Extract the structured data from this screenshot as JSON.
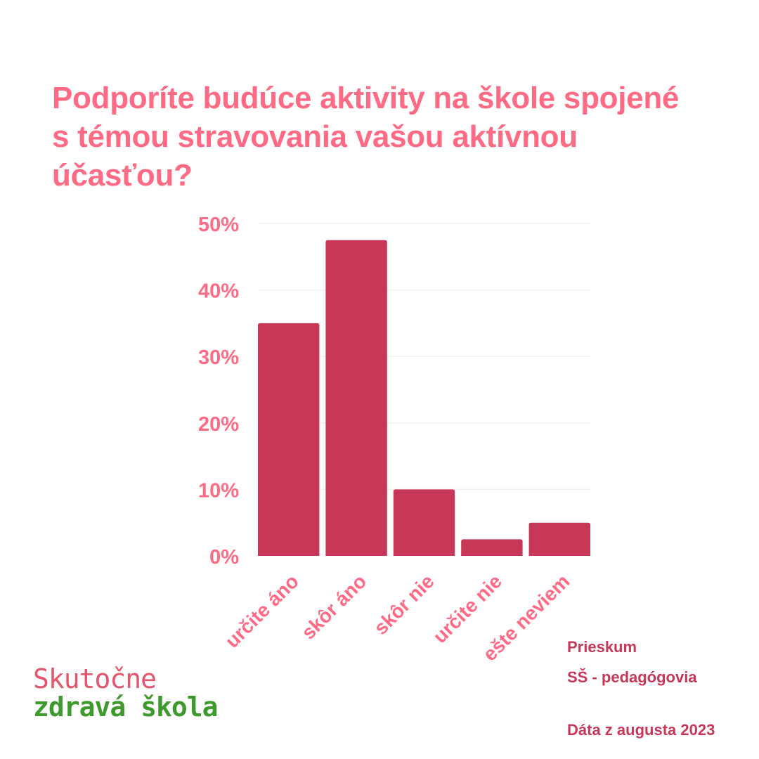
{
  "title": "Podporíte budúce aktivity na škole spojené s témou stravovania vašou aktívnou účasťou?",
  "chart_data": {
    "type": "bar",
    "title": "Podporíte budúce aktivity na škole spojené s témou stravovania vašou aktívnou účasťou?",
    "categories": [
      "určite áno",
      "skôr áno",
      "skôr nie",
      "určite nie",
      "ešte neviem"
    ],
    "values": [
      35,
      47.5,
      10,
      2.5,
      5
    ],
    "unit": "%",
    "xlabel": "",
    "ylabel": "",
    "ylim": [
      0,
      50
    ],
    "yticks": [
      0,
      10,
      20,
      30,
      40,
      50
    ],
    "ytick_labels": [
      "0%",
      "10%",
      "20%",
      "30%",
      "40%",
      "50%"
    ],
    "grid": true,
    "legend": "none",
    "bar_color": "#c73758",
    "grid_color": "#f5f0f1",
    "text_color": "#ff6b85"
  },
  "notes": {
    "survey": "Prieskum",
    "group": "SŠ - pedagógovia",
    "date": "Dáta z augusta 2023"
  },
  "brand": {
    "line1": "Skutočne",
    "line2": "zdravá škola",
    "color1": "#e2566e",
    "color2": "#3f9a2e"
  }
}
